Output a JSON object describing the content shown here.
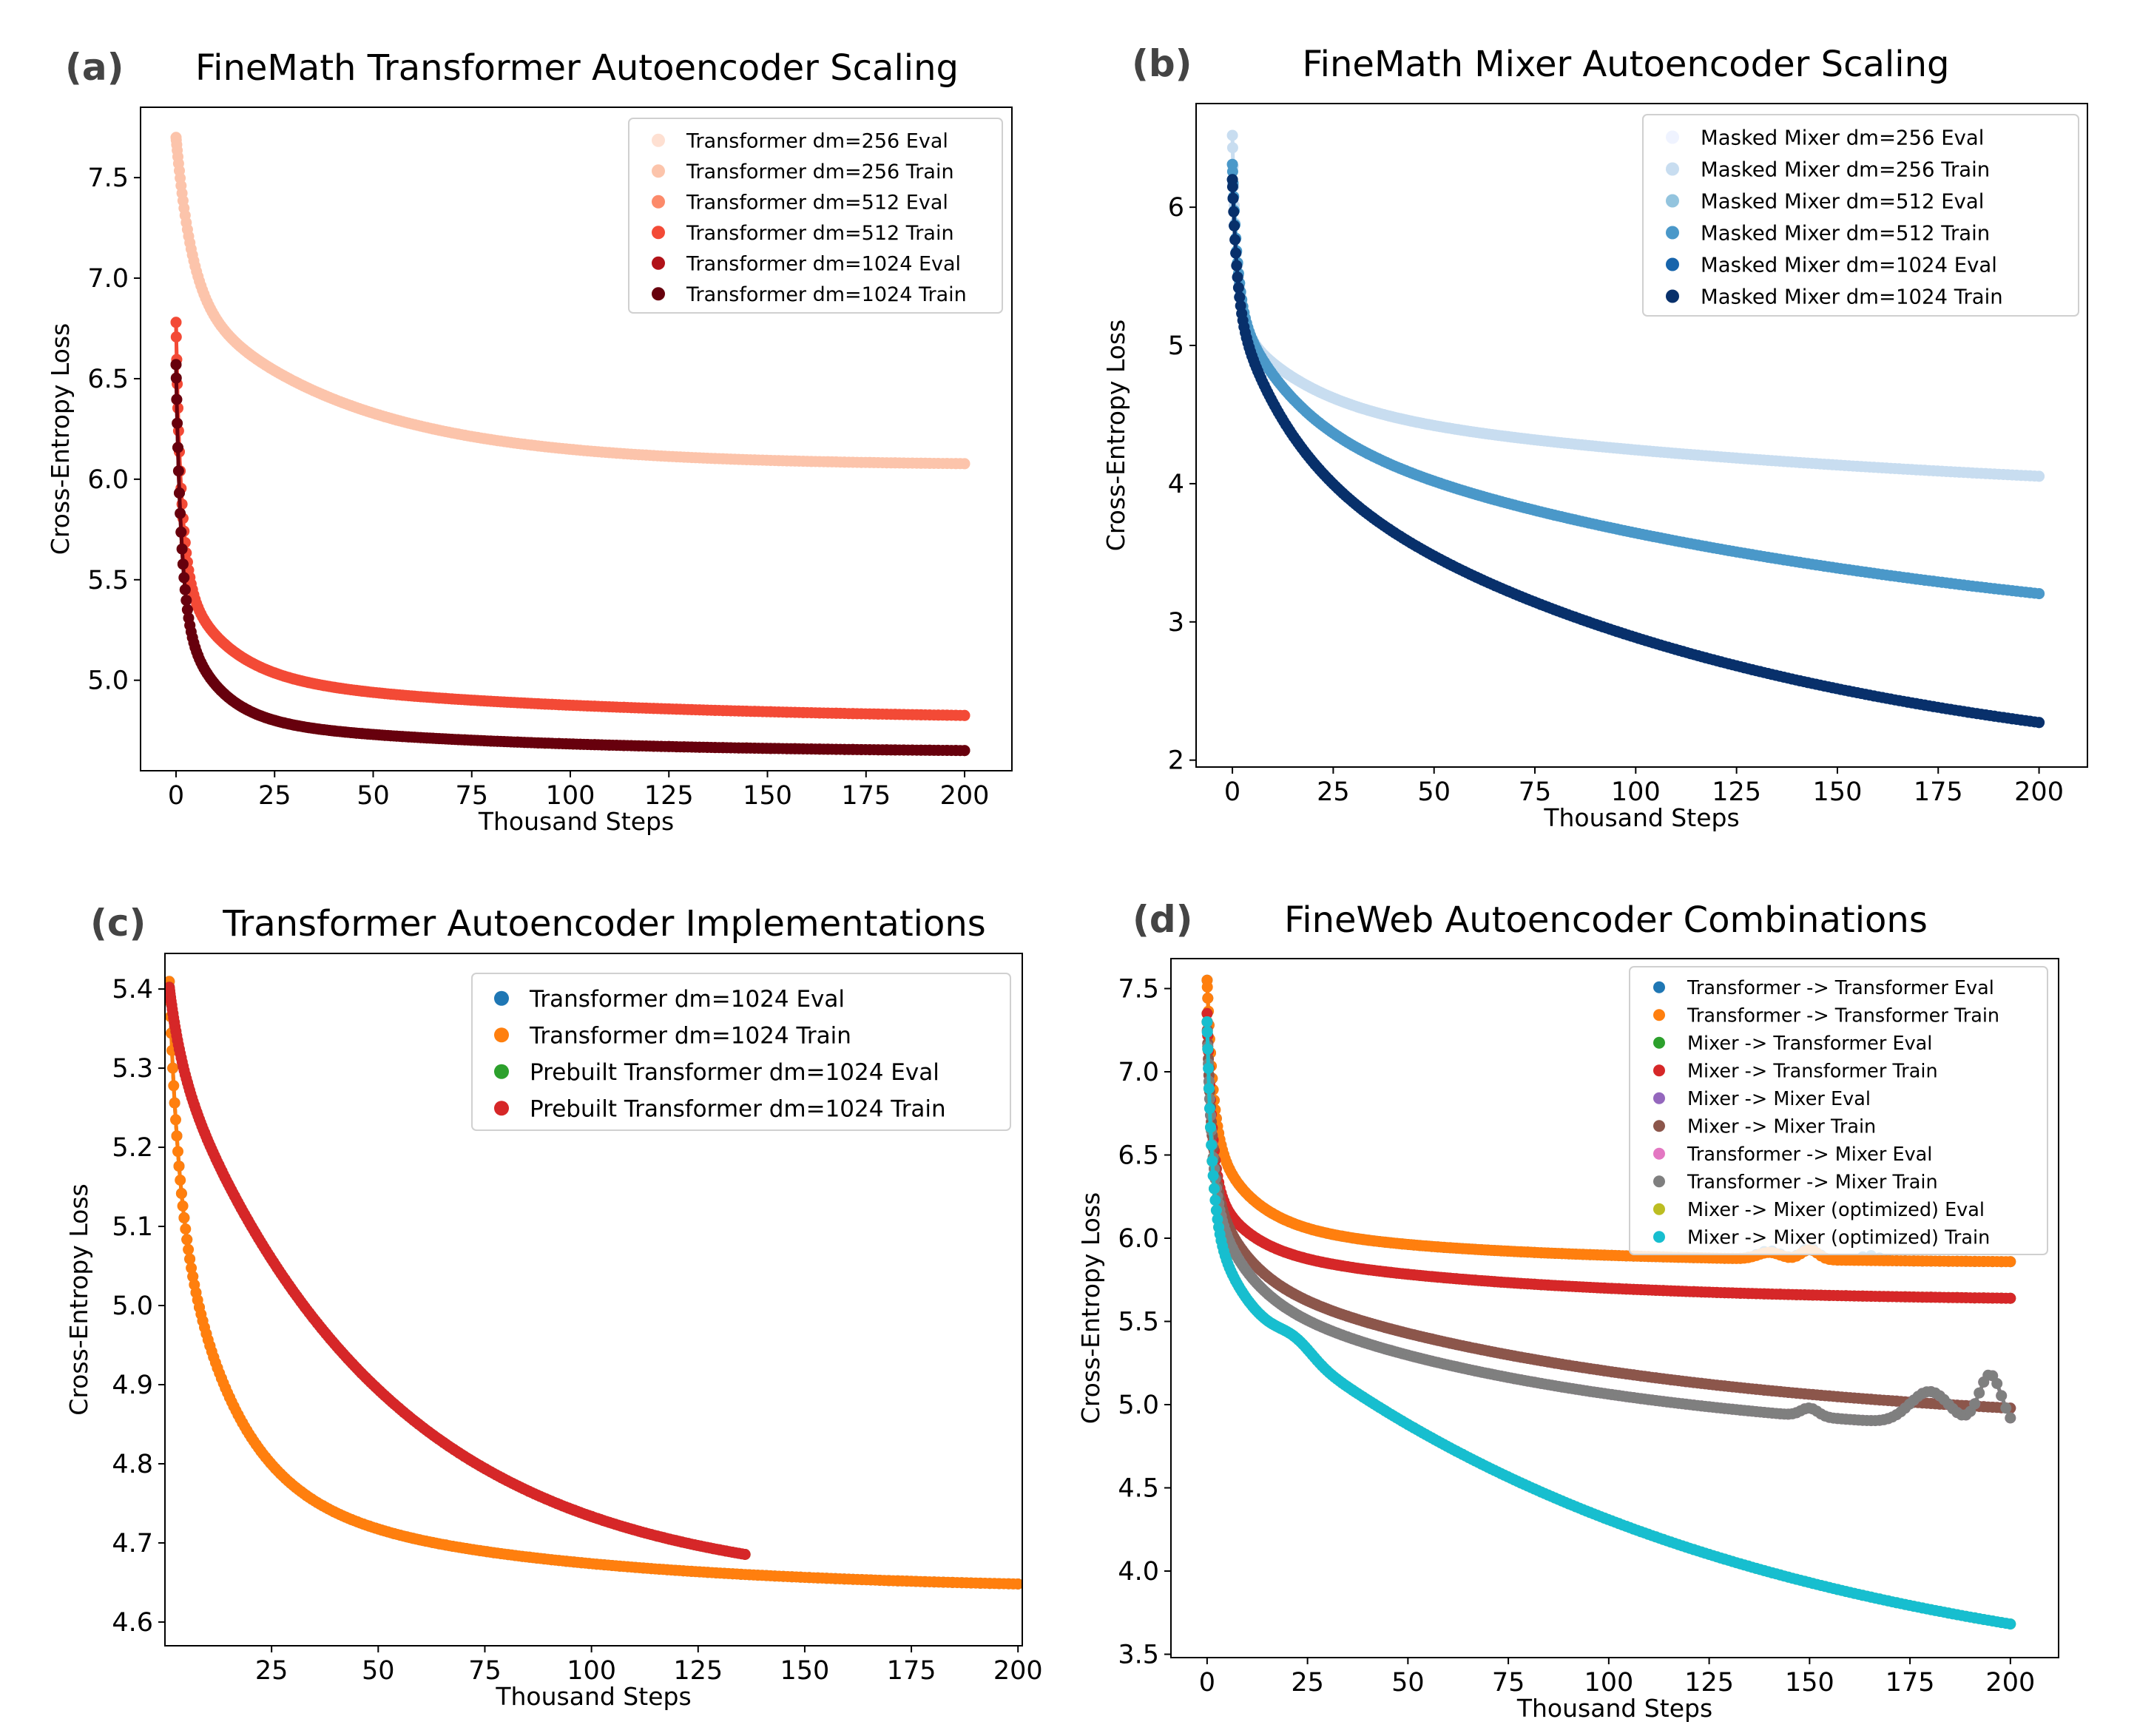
{
  "chart_data": [
    {
      "id": "a",
      "type": "line",
      "panel_label": "(a)",
      "title": "FineMath Transformer Autoencoder Scaling",
      "xlabel": "Thousand Steps",
      "ylabel": "Cross-Entropy Loss",
      "xlim": [
        -9,
        212
      ],
      "ylim": [
        4.55,
        7.85
      ],
      "xticks": [
        0,
        25,
        50,
        75,
        100,
        125,
        150,
        175,
        200
      ],
      "yticks": [
        5.0,
        5.5,
        6.0,
        6.5,
        7.0,
        7.5
      ],
      "ytick_labels": [
        "5.0",
        "5.5",
        "6.0",
        "6.5",
        "7.0",
        "7.5"
      ],
      "legend_position": "top-right",
      "series": [
        {
          "name": "Transformer dm=256 Eval",
          "color": "#fee0d2",
          "curve": {
            "y0": 7.7,
            "yinf": 6.07,
            "a1": 0.78,
            "t1": 4.0,
            "a2": 0.85,
            "t2": 42.0,
            "a3": 0.0,
            "t3": 1.0,
            "xmax": 200
          }
        },
        {
          "name": "Transformer dm=256 Train",
          "color": "#fcc4ab",
          "curve": {
            "y0": 7.7,
            "yinf": 6.07,
            "a1": 0.78,
            "t1": 4.0,
            "a2": 0.85,
            "t2": 42.0,
            "a3": 0.0,
            "t3": 1.0,
            "xmax": 200
          }
        },
        {
          "name": "Transformer dm=512 Eval",
          "color": "#fc8a6a",
          "curve": {
            "y0": 6.78,
            "yinf": 4.8,
            "a1": 1.05,
            "t1": 1.6,
            "a2": 0.5,
            "t2": 12.0,
            "a3": 0.23,
            "t3": 90.0,
            "xmax": 200
          }
        },
        {
          "name": "Transformer dm=512 Train",
          "color": "#f34a36",
          "curve": {
            "y0": 6.78,
            "yinf": 4.8,
            "a1": 1.05,
            "t1": 1.6,
            "a2": 0.5,
            "t2": 12.0,
            "a3": 0.23,
            "t3": 90.0,
            "xmax": 200
          }
        },
        {
          "name": "Transformer dm=1024 Eval",
          "color": "#b11218",
          "curve": {
            "y0": 6.57,
            "yinf": 4.64,
            "a1": 1.1,
            "t1": 1.4,
            "a2": 0.55,
            "t2": 9.0,
            "a3": 0.18,
            "t3": 70.0,
            "xmax": 200
          }
        },
        {
          "name": "Transformer dm=1024 Train",
          "color": "#67000d",
          "curve": {
            "y0": 6.57,
            "yinf": 4.64,
            "a1": 1.1,
            "t1": 1.4,
            "a2": 0.55,
            "t2": 9.0,
            "a3": 0.18,
            "t3": 70.0,
            "xmax": 200
          }
        }
      ]
    },
    {
      "id": "b",
      "type": "line",
      "panel_label": "(b)",
      "title": "FineMath Mixer Autoencoder Scaling",
      "xlabel": "Thousand Steps",
      "ylabel": "Cross-Entropy Loss",
      "xlim": [
        -9,
        212
      ],
      "ylim": [
        1.95,
        6.75
      ],
      "xticks": [
        0,
        25,
        50,
        75,
        100,
        125,
        150,
        175,
        200
      ],
      "yticks": [
        2,
        3,
        4,
        5,
        6
      ],
      "ytick_labels": [
        "2",
        "3",
        "4",
        "5",
        "6"
      ],
      "legend_position": "top-right",
      "series": [
        {
          "name": "Masked Mixer dm=256 Eval",
          "color": "#eff3ff",
          "curve": {
            "y0": 6.52,
            "yinf": 3.8,
            "a1": 1.05,
            "t1": 1.5,
            "a2": 0.6,
            "t2": 18.0,
            "a3": 0.77,
            "t3": 180.0,
            "xmax": 200
          }
        },
        {
          "name": "Masked Mixer dm=256 Train",
          "color": "#c8ddf0",
          "curve": {
            "y0": 6.52,
            "yinf": 3.8,
            "a1": 1.05,
            "t1": 1.5,
            "a2": 0.6,
            "t2": 18.0,
            "a3": 0.77,
            "t3": 180.0,
            "xmax": 200
          }
        },
        {
          "name": "Masked Mixer dm=512 Eval",
          "color": "#93c4de",
          "curve": {
            "y0": 6.31,
            "yinf": 2.7,
            "a1": 1.0,
            "t1": 1.3,
            "a2": 0.85,
            "t2": 15.0,
            "a3": 1.76,
            "t3": 160.0,
            "xmax": 200
          }
        },
        {
          "name": "Masked Mixer dm=512 Train",
          "color": "#4a98c9",
          "curve": {
            "y0": 6.31,
            "yinf": 2.7,
            "a1": 1.0,
            "t1": 1.3,
            "a2": 0.85,
            "t2": 15.0,
            "a3": 1.76,
            "t3": 160.0,
            "xmax": 200
          }
        },
        {
          "name": "Masked Mixer dm=1024 Eval",
          "color": "#1764ab",
          "curve": {
            "y0": 6.2,
            "yinf": 1.8,
            "a1": 0.9,
            "t1": 1.2,
            "a2": 1.0,
            "t2": 14.0,
            "a3": 2.5,
            "t3": 120.0,
            "xmax": 200
          }
        },
        {
          "name": "Masked Mixer dm=1024 Train",
          "color": "#08306b",
          "curve": {
            "y0": 6.2,
            "yinf": 1.8,
            "a1": 0.9,
            "t1": 1.2,
            "a2": 1.0,
            "t2": 14.0,
            "a3": 2.5,
            "t3": 120.0,
            "xmax": 200
          }
        }
      ]
    },
    {
      "id": "c",
      "type": "line",
      "panel_label": "(c)",
      "title": "Transformer Autoencoder Implementations",
      "xlabel": "Thousand Steps",
      "ylabel": "Cross-Entropy Loss",
      "xlim": [
        0,
        201
      ],
      "ylim": [
        4.57,
        5.445
      ],
      "xticks": [
        25,
        50,
        75,
        100,
        125,
        150,
        175,
        200
      ],
      "yticks": [
        4.6,
        4.7,
        4.8,
        4.9,
        5.0,
        5.1,
        5.2,
        5.3,
        5.4
      ],
      "ytick_labels": [
        "4.6",
        "4.7",
        "4.8",
        "4.9",
        "5.0",
        "5.1",
        "5.2",
        "5.3",
        "5.4"
      ],
      "legend_position": "top-right",
      "series": [
        {
          "name": "Transformer dm=1024 Eval",
          "color": "#1f77b4",
          "curve": {
            "y0": 5.6,
            "yinf": 4.64,
            "a1": 0.4,
            "t1": 2.0,
            "a2": 0.42,
            "t2": 13.0,
            "a3": 0.14,
            "t3": 70.0,
            "xmin": 1,
            "xmax": 200
          }
        },
        {
          "name": "Transformer dm=1024 Train",
          "color": "#ff7f0e",
          "curve": {
            "y0": 5.6,
            "yinf": 4.64,
            "a1": 0.4,
            "t1": 2.0,
            "a2": 0.42,
            "t2": 13.0,
            "a3": 0.14,
            "t3": 70.0,
            "xmin": 1,
            "xmax": 200
          }
        },
        {
          "name": "Prebuilt Transformer dm=1024 Eval",
          "color": "#2ca02c",
          "curve": {
            "y0": 5.45,
            "yinf": 4.64,
            "a1": 0.12,
            "t1": 3.0,
            "a2": 0.0,
            "t2": 1.0,
            "a3": 0.69,
            "t3": 50.0,
            "xmin": 1,
            "xmax": 136
          }
        },
        {
          "name": "Prebuilt Transformer dm=1024 Train",
          "color": "#d62728",
          "curve": {
            "y0": 5.45,
            "yinf": 4.64,
            "a1": 0.12,
            "t1": 3.0,
            "a2": 0.0,
            "t2": 1.0,
            "a3": 0.69,
            "t3": 50.0,
            "xmin": 1,
            "xmax": 136
          }
        }
      ]
    },
    {
      "id": "d",
      "type": "line",
      "panel_label": "(d)",
      "title": "FineWeb Autoencoder Combinations",
      "xlabel": "Thousand Steps",
      "ylabel": "Cross-Entropy Loss",
      "xlim": [
        -9,
        212
      ],
      "ylim": [
        3.48,
        7.68
      ],
      "xticks": [
        0,
        25,
        50,
        75,
        100,
        125,
        150,
        175,
        200
      ],
      "yticks": [
        3.5,
        4.0,
        4.5,
        5.0,
        5.5,
        6.0,
        6.5,
        7.0,
        7.5
      ],
      "ytick_labels": [
        "3.5",
        "4.0",
        "4.5",
        "5.0",
        "5.5",
        "6.0",
        "6.5",
        "7.0",
        "7.5"
      ],
      "legend_position": "top-right",
      "series": [
        {
          "name": "Transformer -> Transformer Eval",
          "color": "#1f77b4",
          "curve": {
            "y0": 7.55,
            "yinf": 5.85,
            "a1": 0.9,
            "t1": 1.5,
            "a2": 0.55,
            "t2": 10.0,
            "a3": 0.25,
            "t3": 60.0,
            "xmax": 200,
            "bumps": [
              [
                140,
                0.05,
                4
              ],
              [
                150,
                0.07,
                3
              ],
              [
                165,
                0.03,
                3
              ]
            ]
          }
        },
        {
          "name": "Transformer -> Transformer Train",
          "color": "#ff7f0e",
          "curve": {
            "y0": 7.55,
            "yinf": 5.85,
            "a1": 0.9,
            "t1": 1.5,
            "a2": 0.55,
            "t2": 10.0,
            "a3": 0.25,
            "t3": 60.0,
            "xmax": 200,
            "bumps": [
              [
                140,
                0.04,
                4
              ],
              [
                150,
                0.06,
                3
              ]
            ]
          }
        },
        {
          "name": "Mixer -> Transformer Eval",
          "color": "#2ca02c",
          "curve": {
            "y0": 7.35,
            "yinf": 5.62,
            "a1": 1.0,
            "t1": 1.3,
            "a2": 0.4,
            "t2": 9.0,
            "a3": 0.33,
            "t3": 70.0,
            "xmax": 200
          }
        },
        {
          "name": "Mixer -> Transformer Train",
          "color": "#d62728",
          "curve": {
            "y0": 7.35,
            "yinf": 5.62,
            "a1": 1.0,
            "t1": 1.3,
            "a2": 0.4,
            "t2": 9.0,
            "a3": 0.33,
            "t3": 70.0,
            "xmax": 200
          }
        },
        {
          "name": "Mixer -> Mixer Eval",
          "color": "#9467bd",
          "curve": {
            "y0": 7.3,
            "yinf": 4.85,
            "a1": 0.95,
            "t1": 1.3,
            "a2": 0.55,
            "t2": 9.0,
            "a3": 0.95,
            "t3": 100.0,
            "xmax": 200
          }
        },
        {
          "name": "Mixer -> Mixer Train",
          "color": "#8c564b",
          "curve": {
            "y0": 7.3,
            "yinf": 4.85,
            "a1": 0.95,
            "t1": 1.3,
            "a2": 0.55,
            "t2": 9.0,
            "a3": 0.95,
            "t3": 100.0,
            "xmax": 200
          }
        },
        {
          "name": "Transformer -> Mixer Eval",
          "color": "#e377c2",
          "curve": {
            "y0": 7.3,
            "yinf": 4.75,
            "a1": 0.95,
            "t1": 1.3,
            "a2": 0.6,
            "t2": 9.0,
            "a3": 0.95,
            "t3": 90.0,
            "xmax": 200,
            "bumps": [
              [
                150,
                0.05,
                3
              ],
              [
                180,
                0.2,
                7
              ],
              [
                195,
                0.32,
                4
              ]
            ]
          }
        },
        {
          "name": "Transformer -> Mixer Train",
          "color": "#7f7f7f",
          "curve": {
            "y0": 7.3,
            "yinf": 4.75,
            "a1": 0.95,
            "t1": 1.3,
            "a2": 0.6,
            "t2": 9.0,
            "a3": 0.95,
            "t3": 90.0,
            "xmax": 200,
            "bumps": [
              [
                150,
                0.05,
                3
              ],
              [
                180,
                0.2,
                7
              ],
              [
                195,
                0.32,
                4
              ]
            ]
          }
        },
        {
          "name": "Mixer -> Mixer (optimized) Eval",
          "color": "#bcbd22",
          "curve": {
            "y0": 7.3,
            "yinf": 3.2,
            "a1": 1.1,
            "t1": 1.2,
            "a2": 0.45,
            "t2": 6.0,
            "a3": 2.55,
            "t3": 120.0,
            "xmax": 200,
            "bumps": [
              [
                22,
                0.07,
                6
              ]
            ]
          }
        },
        {
          "name": "Mixer -> Mixer (optimized) Train",
          "color": "#17becf",
          "curve": {
            "y0": 7.3,
            "yinf": 3.2,
            "a1": 1.1,
            "t1": 1.2,
            "a2": 0.45,
            "t2": 6.0,
            "a3": 2.55,
            "t3": 120.0,
            "xmax": 200,
            "bumps": [
              [
                22,
                0.07,
                6
              ]
            ]
          }
        }
      ]
    }
  ]
}
